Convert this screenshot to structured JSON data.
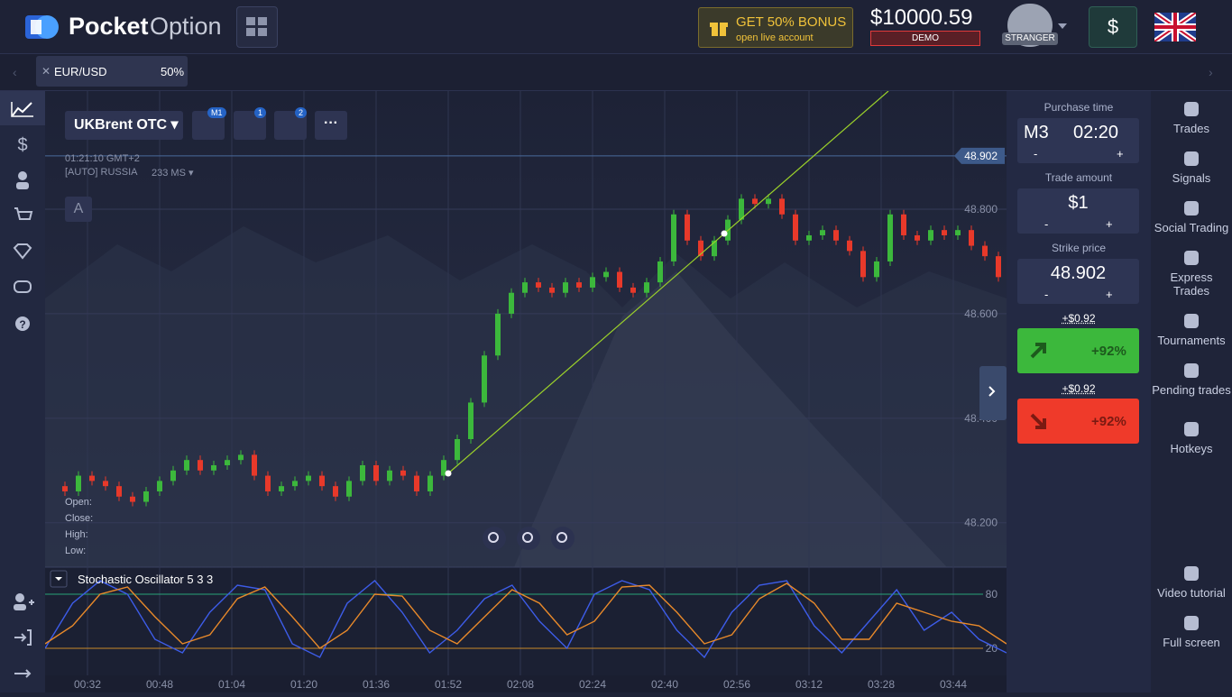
{
  "header": {
    "logo_bold": "Pocket",
    "logo_light": "Option",
    "bonus_title": "GET 50% BONUS",
    "bonus_sub": "open live account",
    "balance": "$10000.59",
    "account_mode": "DEMO",
    "user": "STRANGER",
    "deposit": "$"
  },
  "tabs": [
    {
      "asset": "EUR/USD",
      "payout": "50%"
    }
  ],
  "toolbar": {
    "asset": "UKBrent OTC",
    "timeframe_badge": "M1",
    "indicators_badge": "1",
    "drawings_badge": "2",
    "time": "01:21:10 GMT+2",
    "server": "[AUTO] RUSSIA",
    "ping": "233 MS",
    "mode": "A"
  },
  "ohlc_labels": [
    "Open:",
    "Close:",
    "High:",
    "Low:"
  ],
  "chart_data": [
    {
      "type": "candlestick",
      "colors": {
        "up": "#3cb83c",
        "down": "#e8392a"
      },
      "closes": [
        48.27,
        48.26,
        48.29,
        48.28,
        48.27,
        48.25,
        48.24,
        48.26,
        48.28,
        48.3,
        48.32,
        48.3,
        48.31,
        48.32,
        48.33,
        48.29,
        48.26,
        48.27,
        48.28,
        48.29,
        48.27,
        48.25,
        48.28,
        48.31,
        48.28,
        48.3,
        48.29,
        48.26,
        48.29,
        48.32,
        48.36,
        48.43,
        48.52,
        48.6,
        48.64,
        48.66,
        48.65,
        48.64,
        48.66,
        48.65,
        48.67,
        48.68,
        48.65,
        48.64,
        48.66,
        48.7,
        48.79,
        48.74,
        48.71,
        48.74,
        48.78,
        48.82,
        48.81,
        48.82,
        48.79,
        48.74,
        48.75,
        48.76,
        48.74,
        48.72,
        48.67,
        48.7,
        48.79,
        48.75,
        48.74,
        48.76,
        48.75,
        48.76,
        48.73,
        48.71,
        48.67
      ],
      "current_price": 48.902,
      "ylim": [
        48.115,
        49.026
      ],
      "yticks": [
        {
          "value": 48.2,
          "label": "48.200"
        },
        {
          "value": 48.4,
          "label": "48.400"
        },
        {
          "value": 48.6,
          "label": "48.600"
        },
        {
          "value": 48.8,
          "label": "48.800"
        }
      ],
      "xticks": [
        "00:32",
        "00:48",
        "01:04",
        "01:20",
        "01:36",
        "01:52",
        "02:08",
        "02:24",
        "02:40",
        "02:56",
        "03:12",
        "03:28",
        "03:44"
      ],
      "grid": true
    },
    {
      "type": "line",
      "title": "Stochastic Oscillator 5 3 3",
      "series": [
        {
          "color": "#3d5ce8",
          "values": [
            20,
            70,
            95,
            80,
            30,
            15,
            60,
            90,
            85,
            25,
            10,
            70,
            95,
            60,
            15,
            40,
            75,
            90,
            50,
            20,
            80,
            95,
            85,
            40,
            10,
            60,
            90,
            95,
            45,
            15,
            50,
            85,
            40,
            60,
            30,
            15
          ]
        },
        {
          "color": "#e8892a",
          "values": [
            25,
            45,
            80,
            88,
            55,
            25,
            35,
            75,
            88,
            55,
            20,
            40,
            80,
            78,
            40,
            25,
            55,
            85,
            70,
            35,
            50,
            88,
            90,
            60,
            25,
            35,
            75,
            92,
            70,
            30,
            30,
            70,
            60,
            50,
            45,
            25
          ]
        }
      ],
      "ylim": [
        -10,
        110
      ],
      "yticks": [
        20,
        80
      ],
      "level_colors": [
        "#c98a2a",
        "#2aa37a"
      ]
    }
  ],
  "trade_panel": {
    "purchase_time_label": "Purchase time",
    "timeframe": "M3",
    "time": "02:20",
    "minus": "-",
    "plus": "+",
    "amount_label": "Trade amount",
    "amount": "$1",
    "strike_label": "Strike price",
    "strike": "48.902",
    "profit_up": "+$0.92",
    "payout_up": "+92%",
    "profit_down": "+$0.92",
    "payout_down": "+92%"
  },
  "side_menu": [
    "Trades",
    "Signals",
    "Social Trading",
    "Express Trades",
    "Tournaments",
    "Pending trades",
    "Hotkeys",
    "Video tutorial",
    "Full screen"
  ]
}
